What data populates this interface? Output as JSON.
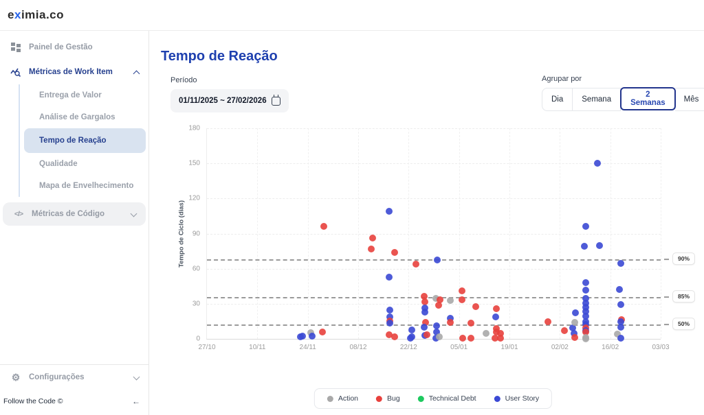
{
  "header": {
    "logo": {
      "pre": "e",
      "accent": "x",
      "post": "imia.co"
    }
  },
  "sidebar": {
    "painel": "Painel de Gestão",
    "metricas_work_item": "Métricas de Work Item",
    "sub_items": [
      "Entrega de Valor",
      "Análise de Gargalos",
      "Tempo de Reação",
      "Qualidade",
      "Mapa de Envelhecimento"
    ],
    "active_sub_item": "Tempo de Reação",
    "metricas_codigo": "Métricas de Código",
    "configuracoes": "Configurações",
    "footer": "Follow the Code ©",
    "collapse_arrow": "←"
  },
  "main": {
    "title": "Tempo de Reação",
    "period": {
      "label": "Período",
      "value": "01/11/2025 ~ 27/02/2026"
    },
    "group_by": {
      "label": "Agrupar por",
      "options": [
        "Dia",
        "Semana",
        "2 Semanas",
        "Mês"
      ],
      "selected": "2 Semanas"
    }
  },
  "chart_data": {
    "type": "scatter",
    "title": "Tempo de Reação",
    "ylabel": "Tempo de Ciclo (dias)",
    "ylim": [
      0,
      180
    ],
    "y_ticks": [
      0,
      30,
      60,
      90,
      120,
      150,
      180
    ],
    "x_tick_labels": [
      "27/10",
      "10/11",
      "24/11",
      "08/12",
      "22/12",
      "05/01",
      "19/01",
      "02/02",
      "16/02",
      "03/03"
    ],
    "x_tick_days": [
      0,
      14,
      28,
      42,
      56,
      70,
      84,
      98,
      112,
      126
    ],
    "xlim_days": [
      0,
      126
    ],
    "grid": true,
    "legend_position": "bottom",
    "percentiles": [
      {
        "label": "90%",
        "value": 68
      },
      {
        "label": "85%",
        "value": 36
      },
      {
        "label": "50%",
        "value": 12.5
      }
    ],
    "series_colors": {
      "action": "#a9a9a9",
      "bug": "#e8413d",
      "debt": "#1ec95f",
      "story": "#3b49d4"
    },
    "legend": [
      {
        "label": "Action",
        "key": "action"
      },
      {
        "label": "Bug",
        "key": "bug"
      },
      {
        "label": "Technical Debt",
        "key": "debt"
      },
      {
        "label": "User Story",
        "key": "story"
      }
    ],
    "points": [
      [
        26.0,
        1.5,
        "story"
      ],
      [
        26.6,
        2.5,
        "story"
      ],
      [
        28.9,
        5,
        "action"
      ],
      [
        29.3,
        2.5,
        "story"
      ],
      [
        32.1,
        6,
        "bug"
      ],
      [
        32.5,
        96,
        "bug"
      ],
      [
        45.7,
        77,
        "bug"
      ],
      [
        46.0,
        86,
        "bug"
      ],
      [
        50.6,
        109,
        "story"
      ],
      [
        52.1,
        74,
        "bug"
      ],
      [
        50.6,
        53,
        "story"
      ],
      [
        50.7,
        24.5,
        "story"
      ],
      [
        50.7,
        19,
        "story"
      ],
      [
        50.8,
        15,
        "bug"
      ],
      [
        50.7,
        13.7,
        "story"
      ],
      [
        50.6,
        3.4,
        "bug"
      ],
      [
        52.1,
        1.9,
        "bug"
      ],
      [
        56.8,
        7.8,
        "story"
      ],
      [
        56.8,
        1.9,
        "story"
      ],
      [
        56.6,
        0.3,
        "story"
      ],
      [
        58.0,
        64,
        "bug"
      ],
      [
        60.3,
        36.3,
        "bug"
      ],
      [
        60.6,
        31.4,
        "bug"
      ],
      [
        60.6,
        26.5,
        "story"
      ],
      [
        60.6,
        22.9,
        "story"
      ],
      [
        60.8,
        14.1,
        "bug"
      ],
      [
        60.3,
        9.8,
        "story"
      ],
      [
        60.6,
        2.9,
        "story"
      ],
      [
        61.0,
        3.5,
        "bug"
      ],
      [
        63.9,
        67.6,
        "story"
      ],
      [
        63.5,
        34.3,
        "action"
      ],
      [
        64.8,
        33.3,
        "bug"
      ],
      [
        64.4,
        28.8,
        "bug"
      ],
      [
        63.8,
        11.2,
        "story"
      ],
      [
        63.8,
        5.9,
        "story"
      ],
      [
        63.5,
        0.3,
        "story"
      ],
      [
        64.6,
        1.9,
        "action"
      ],
      [
        67.5,
        32.9,
        "action"
      ],
      [
        67.6,
        17.6,
        "story"
      ],
      [
        67.6,
        14.3,
        "bug"
      ],
      [
        70.9,
        41.2,
        "bug"
      ],
      [
        70.9,
        33.3,
        "bug"
      ],
      [
        71.0,
        0.5,
        "bug"
      ],
      [
        73.3,
        13.7,
        "bug"
      ],
      [
        73.3,
        0.5,
        "bug"
      ],
      [
        74.6,
        27.8,
        "bug"
      ],
      [
        77.5,
        4.5,
        "action"
      ],
      [
        80.3,
        25.9,
        "bug"
      ],
      [
        80.1,
        19,
        "story"
      ],
      [
        80.3,
        8.8,
        "bug"
      ],
      [
        80.3,
        5.9,
        "bug"
      ],
      [
        81.6,
        4.7,
        "bug"
      ],
      [
        80.0,
        0.3,
        "bug"
      ],
      [
        81.6,
        0.3,
        "bug"
      ],
      [
        94.6,
        14.7,
        "bug"
      ],
      [
        99.2,
        7.2,
        "bug"
      ],
      [
        101.6,
        9.4,
        "story"
      ],
      [
        101.9,
        4.9,
        "story"
      ],
      [
        102.2,
        1,
        "bug"
      ],
      [
        102.2,
        14.1,
        "action"
      ],
      [
        102.4,
        22.5,
        "story"
      ],
      [
        104.9,
        79,
        "story"
      ],
      [
        105.1,
        96,
        "story"
      ],
      [
        108.4,
        150,
        "story"
      ],
      [
        109.0,
        80,
        "story"
      ],
      [
        105.1,
        48,
        "story"
      ],
      [
        105.1,
        41.6,
        "story"
      ],
      [
        105.1,
        34.3,
        "story"
      ],
      [
        105.1,
        30.4,
        "story"
      ],
      [
        105.1,
        26.9,
        "story"
      ],
      [
        105.1,
        23.5,
        "story"
      ],
      [
        105.1,
        19.6,
        "story"
      ],
      [
        105.1,
        14.7,
        "story"
      ],
      [
        105.1,
        12.4,
        "story"
      ],
      [
        105.2,
        9.2,
        "bug"
      ],
      [
        105.1,
        7.2,
        "story"
      ],
      [
        105.2,
        5.9,
        "bug"
      ],
      [
        105.1,
        1,
        "action"
      ],
      [
        105.1,
        0.2,
        "action"
      ],
      [
        114.9,
        64.3,
        "story"
      ],
      [
        114.6,
        42.2,
        "story"
      ],
      [
        114.9,
        29.4,
        "story"
      ],
      [
        115.2,
        16.6,
        "bug"
      ],
      [
        114.9,
        14.7,
        "story"
      ],
      [
        114.9,
        9.8,
        "story"
      ],
      [
        113.9,
        3.9,
        "action"
      ],
      [
        114.9,
        0.3,
        "story"
      ]
    ]
  }
}
